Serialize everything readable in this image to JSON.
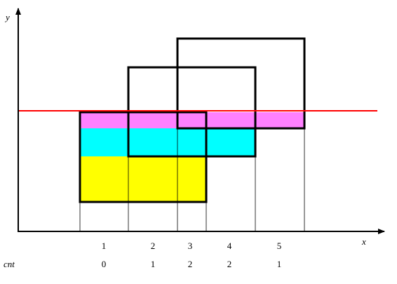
{
  "axes": {
    "x_label": "x",
    "y_label": "y"
  },
  "rows": {
    "index_values": [
      "1",
      "2",
      "3",
      "4",
      "5"
    ],
    "cnt_label": "cnt",
    "cnt_values": [
      "0",
      "1",
      "2",
      "2",
      "1"
    ]
  },
  "colors": {
    "yellow": "#ffff00",
    "cyan": "#00ffff",
    "magenta": "#ff80ff",
    "sweep_line": "#ff0000",
    "outline": "#000000"
  }
}
